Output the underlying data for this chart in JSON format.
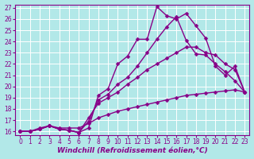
{
  "xlabel": "Windchill (Refroidissement éolien,°C)",
  "xlim": [
    -0.5,
    23.5
  ],
  "ylim": [
    15.7,
    27.3
  ],
  "xticks": [
    0,
    1,
    2,
    3,
    4,
    5,
    6,
    7,
    8,
    9,
    10,
    11,
    12,
    13,
    14,
    15,
    16,
    17,
    18,
    19,
    20,
    21,
    22,
    23
  ],
  "yticks": [
    16,
    17,
    18,
    19,
    20,
    21,
    22,
    23,
    24,
    25,
    26,
    27
  ],
  "bg_color": "#b2e8e8",
  "grid_color": "#ffffff",
  "line_color": "#880088",
  "lines": [
    {
      "x": [
        0,
        1,
        2,
        3,
        4,
        5,
        6,
        7,
        8,
        9,
        10,
        11,
        12,
        13,
        14,
        15,
        16,
        17,
        18,
        19,
        20,
        21,
        22,
        23
      ],
      "y": [
        16,
        16,
        16.2,
        16.5,
        16.2,
        16.1,
        15.9,
        16.3,
        19.2,
        19.8,
        22.0,
        22.7,
        24.2,
        24.2,
        27.1,
        26.3,
        26.0,
        26.5,
        25.4,
        24.3,
        21.8,
        21.0,
        21.8,
        19.5
      ]
    },
    {
      "x": [
        0,
        1,
        2,
        3,
        4,
        5,
        6,
        7,
        8,
        9,
        10,
        11,
        12,
        13,
        14,
        15,
        16,
        17,
        18,
        19,
        20,
        21,
        22,
        23
      ],
      "y": [
        16,
        16,
        16.2,
        16.5,
        16.2,
        16.1,
        15.9,
        16.9,
        18.8,
        19.3,
        20.2,
        20.8,
        21.8,
        23.0,
        24.2,
        25.3,
        26.2,
        24.1,
        22.9,
        22.8,
        22.0,
        21.3,
        20.5,
        19.5
      ]
    },
    {
      "x": [
        0,
        1,
        2,
        3,
        4,
        5,
        6,
        7,
        8,
        9,
        10,
        11,
        12,
        13,
        14,
        15,
        16,
        17,
        18,
        19,
        20,
        21,
        22,
        23
      ],
      "y": [
        16,
        16,
        16.2,
        16.5,
        16.2,
        16.1,
        15.9,
        17.2,
        18.5,
        19.0,
        19.5,
        20.2,
        20.8,
        21.5,
        22.0,
        22.5,
        23.0,
        23.5,
        23.5,
        23.0,
        22.8,
        22.0,
        21.5,
        19.5
      ]
    },
    {
      "x": [
        0,
        1,
        2,
        3,
        4,
        5,
        6,
        7,
        8,
        9,
        10,
        11,
        12,
        13,
        14,
        15,
        16,
        17,
        18,
        19,
        20,
        21,
        22,
        23
      ],
      "y": [
        16,
        16,
        16.3,
        16.5,
        16.3,
        16.3,
        16.3,
        16.7,
        17.2,
        17.5,
        17.8,
        18.0,
        18.2,
        18.4,
        18.6,
        18.8,
        19.0,
        19.2,
        19.3,
        19.4,
        19.5,
        19.6,
        19.7,
        19.5
      ]
    }
  ],
  "marker": "D",
  "markersize": 2.5,
  "linewidth": 1.0,
  "tick_fontsize": 5.5,
  "xlabel_fontsize": 6.5
}
